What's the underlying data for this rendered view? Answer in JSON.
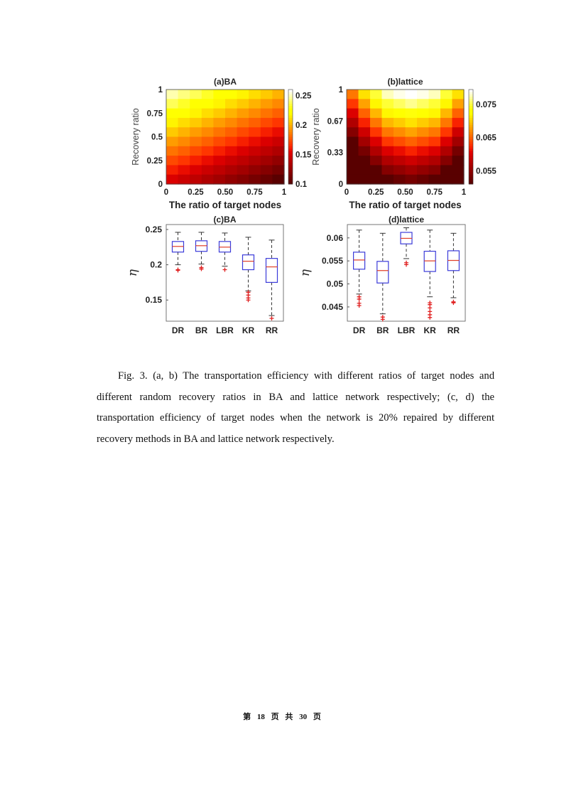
{
  "chart_data": [
    {
      "type": "heatmap",
      "title": "(a)BA",
      "xlabel": "The ratio of target nodes",
      "ylabel": "Recovery ratio",
      "xticks": [
        "0",
        "0.25",
        "0.50",
        "0.75",
        "1"
      ],
      "yticks": [
        "0",
        "0.25",
        "0.5",
        "0.75",
        "1"
      ],
      "xlim": [
        0,
        1
      ],
      "ylim": [
        0,
        1
      ],
      "colorbar": {
        "ticks": [
          "0.1",
          "0.15",
          "0.2",
          "0.25"
        ],
        "tick_values": [
          0.1,
          0.15,
          0.2,
          0.25
        ],
        "range": [
          0.1,
          0.26
        ],
        "colormap": "hot"
      },
      "z_rows_top_to_bottom": [
        [
          0.25,
          0.244,
          0.239,
          0.233,
          0.228,
          0.222,
          0.217,
          0.211,
          0.206,
          0.2
        ],
        [
          0.239,
          0.233,
          0.228,
          0.222,
          0.217,
          0.211,
          0.206,
          0.2,
          0.194,
          0.189
        ],
        [
          0.228,
          0.222,
          0.217,
          0.211,
          0.206,
          0.2,
          0.194,
          0.189,
          0.183,
          0.178
        ],
        [
          0.217,
          0.211,
          0.206,
          0.2,
          0.194,
          0.189,
          0.183,
          0.178,
          0.172,
          0.167
        ],
        [
          0.206,
          0.2,
          0.194,
          0.189,
          0.183,
          0.178,
          0.172,
          0.167,
          0.161,
          0.156
        ],
        [
          0.194,
          0.189,
          0.183,
          0.178,
          0.172,
          0.167,
          0.161,
          0.156,
          0.15,
          0.144
        ],
        [
          0.183,
          0.178,
          0.172,
          0.167,
          0.161,
          0.156,
          0.15,
          0.144,
          0.139,
          0.133
        ],
        [
          0.172,
          0.167,
          0.161,
          0.156,
          0.15,
          0.144,
          0.139,
          0.133,
          0.128,
          0.122
        ],
        [
          0.161,
          0.156,
          0.15,
          0.144,
          0.139,
          0.133,
          0.128,
          0.122,
          0.117,
          0.111
        ],
        [
          0.15,
          0.144,
          0.139,
          0.133,
          0.128,
          0.122,
          0.117,
          0.111,
          0.106,
          0.1
        ]
      ]
    },
    {
      "type": "heatmap",
      "title": "(b)lattice",
      "xlabel": "The ratio of target nodes",
      "ylabel": "Recovery ratio",
      "xticks": [
        "0",
        "0.25",
        "0.50",
        "0.75",
        "1"
      ],
      "yticks": [
        "0",
        "0.33",
        "0.67",
        "1"
      ],
      "xlim": [
        0,
        1
      ],
      "ylim": [
        0,
        1
      ],
      "colorbar": {
        "ticks": [
          "0.055",
          "0.065",
          "0.075"
        ],
        "tick_values": [
          0.055,
          0.065,
          0.075
        ],
        "range": [
          0.051,
          0.0795
        ],
        "colormap": "hot"
      },
      "z_rows_top_to_bottom": [
        [
          0.066,
          0.071,
          0.075,
          0.078,
          0.079,
          0.08,
          0.079,
          0.078,
          0.075,
          0.071
        ],
        [
          0.063,
          0.068,
          0.072,
          0.075,
          0.076,
          0.077,
          0.076,
          0.075,
          0.072,
          0.068
        ],
        [
          0.06,
          0.065,
          0.069,
          0.072,
          0.073,
          0.074,
          0.073,
          0.072,
          0.069,
          0.065
        ],
        [
          0.057,
          0.062,
          0.066,
          0.069,
          0.07,
          0.071,
          0.07,
          0.069,
          0.066,
          0.062
        ],
        [
          0.054,
          0.059,
          0.063,
          0.066,
          0.067,
          0.068,
          0.067,
          0.066,
          0.063,
          0.059
        ],
        [
          0.051,
          0.056,
          0.06,
          0.063,
          0.064,
          0.065,
          0.064,
          0.063,
          0.06,
          0.056
        ],
        [
          0.05,
          0.053,
          0.057,
          0.06,
          0.061,
          0.062,
          0.061,
          0.06,
          0.057,
          0.053
        ],
        [
          0.05,
          0.05,
          0.054,
          0.057,
          0.058,
          0.059,
          0.058,
          0.057,
          0.054,
          0.05
        ],
        [
          0.05,
          0.05,
          0.051,
          0.054,
          0.055,
          0.056,
          0.055,
          0.054,
          0.051,
          0.05
        ],
        [
          0.05,
          0.05,
          0.05,
          0.051,
          0.052,
          0.053,
          0.052,
          0.051,
          0.05,
          0.05
        ]
      ]
    },
    {
      "type": "box",
      "title": "(c)BA",
      "ylabel": "η",
      "categories": [
        "DR",
        "BR",
        "LBR",
        "KR",
        "RR"
      ],
      "yticks": [
        "0.15",
        "0.2",
        "0.25"
      ],
      "ytick_values": [
        0.15,
        0.2,
        0.25
      ],
      "ylim": [
        0.12,
        0.257
      ],
      "boxes": [
        {
          "whislo": 0.2,
          "q1": 0.218,
          "med": 0.226,
          "q3": 0.233,
          "whishi": 0.246,
          "outliers": [
            0.192,
            0.193
          ]
        },
        {
          "whislo": 0.201,
          "q1": 0.219,
          "med": 0.227,
          "q3": 0.234,
          "whishi": 0.246,
          "outliers": [
            0.194,
            0.196
          ]
        },
        {
          "whislo": 0.198,
          "q1": 0.218,
          "med": 0.225,
          "q3": 0.233,
          "whishi": 0.245,
          "outliers": [
            0.193
          ]
        },
        {
          "whislo": 0.163,
          "q1": 0.193,
          "med": 0.205,
          "q3": 0.214,
          "whishi": 0.239,
          "outliers": [
            0.161,
            0.157,
            0.153,
            0.15
          ]
        },
        {
          "whislo": 0.128,
          "q1": 0.175,
          "med": 0.197,
          "q3": 0.209,
          "whishi": 0.235,
          "outliers": [
            0.124
          ]
        }
      ]
    },
    {
      "type": "box",
      "title": "(d)lattice",
      "ylabel": "η",
      "categories": [
        "DR",
        "BR",
        "LBR",
        "KR",
        "RR"
      ],
      "yticks": [
        "0.045",
        "0.05",
        "0.055",
        "0.06"
      ],
      "ytick_values": [
        0.045,
        0.05,
        0.055,
        0.06
      ],
      "ylim": [
        0.0419,
        0.0629
      ],
      "boxes": [
        {
          "whislo": 0.0478,
          "q1": 0.0532,
          "med": 0.0552,
          "q3": 0.0569,
          "whishi": 0.0617,
          "outliers": [
            0.0472,
            0.0467,
            0.0458,
            0.0453
          ]
        },
        {
          "whislo": 0.0435,
          "q1": 0.0502,
          "med": 0.0529,
          "q3": 0.0549,
          "whishi": 0.061,
          "outliers": [
            0.0428,
            0.0423
          ]
        },
        {
          "whislo": 0.0555,
          "q1": 0.0587,
          "med": 0.0599,
          "q3": 0.0612,
          "whishi": 0.0622,
          "outliers": [
            0.0546,
            0.0542
          ]
        },
        {
          "whislo": 0.0472,
          "q1": 0.0527,
          "med": 0.055,
          "q3": 0.0571,
          "whishi": 0.0617,
          "outliers": [
            0.0459,
            0.0455,
            0.0448,
            0.044,
            0.0433,
            0.0427
          ]
        },
        {
          "whislo": 0.047,
          "q1": 0.0529,
          "med": 0.0551,
          "q3": 0.0572,
          "whishi": 0.061,
          "outliers": [
            0.0461,
            0.0459
          ]
        }
      ]
    }
  ],
  "caption": "Fig. 3. (a, b) The transportation efficiency with different ratios of target nodes and different random recovery ratios in BA and lattice network respectively; (c, d) the transportation efficiency of target nodes when the network is 20% repaired by different recovery methods in BA and lattice network respectively.",
  "footer": "第 18 页  共 30 页",
  "colors": {
    "box": "#3b3bd9",
    "median": "#e0402a",
    "outlier": "#e02020",
    "whisker": "#333333"
  }
}
